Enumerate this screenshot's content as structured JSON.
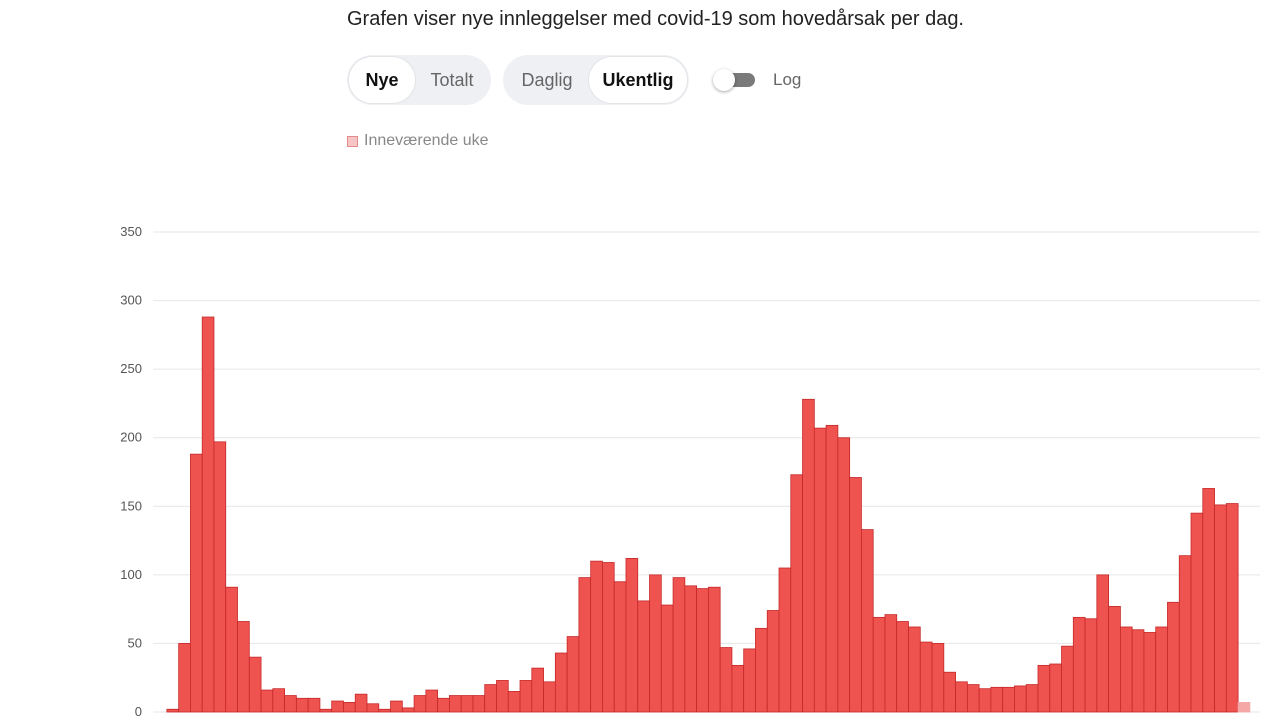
{
  "description": "Grafen viser nye innleggelser med covid-19 som hovedårsak per dag.",
  "controls": {
    "type_group": [
      {
        "label": "Nye",
        "active": true
      },
      {
        "label": "Totalt",
        "active": false
      }
    ],
    "period_group": [
      {
        "label": "Daglig",
        "active": false
      },
      {
        "label": "Ukentlig",
        "active": true
      }
    ],
    "log_toggle": {
      "label": "Log",
      "on": false
    }
  },
  "legend": {
    "current_week_label": "Inneværende uke"
  },
  "colors": {
    "bar": "#ef5350",
    "bar_stroke": "#c62828",
    "current_week_bar": "#f4a7a7",
    "grid": "#e6e6e6"
  },
  "chart_data": {
    "type": "bar",
    "title": "",
    "xlabel": "",
    "ylabel": "",
    "ylim": [
      0,
      350
    ],
    "y_ticks": [
      0,
      50,
      100,
      150,
      200,
      250,
      300,
      350
    ],
    "y_tick_labels": [
      "0",
      "50",
      "100",
      "150",
      "200",
      "250",
      "300",
      "350"
    ],
    "grid": true,
    "values": [
      0,
      2,
      50,
      188,
      288,
      197,
      91,
      66,
      40,
      16,
      17,
      12,
      10,
      10,
      2,
      8,
      7,
      13,
      6,
      2,
      8,
      3,
      12,
      16,
      10,
      12,
      12,
      12,
      20,
      23,
      15,
      23,
      32,
      22,
      43,
      55,
      98,
      110,
      109,
      95,
      112,
      81,
      100,
      78,
      98,
      92,
      90,
      91,
      47,
      34,
      46,
      61,
      74,
      105,
      173,
      228,
      207,
      209,
      200,
      171,
      133,
      69,
      71,
      66,
      62,
      51,
      50,
      29,
      22,
      20,
      17,
      18,
      18,
      19,
      20,
      34,
      35,
      48,
      69,
      68,
      100,
      77,
      62,
      60,
      58,
      62,
      80,
      114,
      145,
      163,
      151,
      152,
      7
    ],
    "current_week_index": 92
  }
}
